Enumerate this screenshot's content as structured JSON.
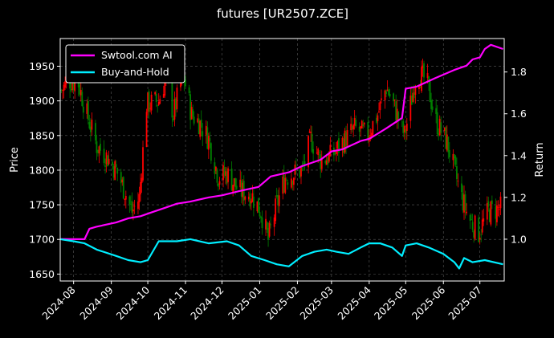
{
  "chart_data": {
    "type": "line",
    "title": "futures [UR2507.ZCE]",
    "ylabel_left": "Price",
    "ylabel_right": "Return",
    "ylim_left": [
      1640,
      1990
    ],
    "ylim_right": [
      0.8,
      1.96
    ],
    "yticks_left": [
      1650,
      1700,
      1750,
      1800,
      1850,
      1900,
      1950
    ],
    "yticks_right": [
      1.0,
      1.2,
      1.4,
      1.6,
      1.8
    ],
    "xlim": [
      "2024-07-21",
      "2025-07-21"
    ],
    "xticks": [
      "2024-08",
      "2024-09",
      "2024-10",
      "2024-11",
      "2024-12",
      "2025-01",
      "2025-02",
      "2025-03",
      "2025-04",
      "2025-05",
      "2025-06",
      "2025-07"
    ],
    "grid": true,
    "legend_position": "top-left",
    "colors": {
      "up": "#ff0000",
      "down": "#008000",
      "ai": "#ff00ff",
      "bh": "#00eeff"
    },
    "candlestick_anchors": {
      "dates": [
        "2024-07-22",
        "2024-07-28",
        "2024-08-05",
        "2024-08-12",
        "2024-08-20",
        "2024-08-28",
        "2024-09-05",
        "2024-09-12",
        "2024-09-18",
        "2024-09-24",
        "2024-09-30",
        "2024-10-10",
        "2024-10-16",
        "2024-10-22",
        "2024-10-30",
        "2024-11-06",
        "2024-11-12",
        "2024-11-20",
        "2024-11-28",
        "2024-12-05",
        "2024-12-15",
        "2024-12-25",
        "2025-01-02",
        "2025-01-08",
        "2025-01-15",
        "2025-01-22",
        "2025-02-05",
        "2025-02-12",
        "2025-02-20",
        "2025-03-01",
        "2025-03-10",
        "2025-03-20",
        "2025-03-30",
        "2025-04-08",
        "2025-04-15",
        "2025-04-22",
        "2025-04-30",
        "2025-05-10",
        "2025-05-18",
        "2025-05-26",
        "2025-06-04",
        "2025-06-10",
        "2025-06-16",
        "2025-06-22",
        "2025-06-30",
        "2025-07-08",
        "2025-07-18"
      ],
      "close": [
        1915,
        1930,
        1925,
        1880,
        1835,
        1820,
        1800,
        1770,
        1740,
        1760,
        1895,
        1900,
        1935,
        1880,
        1940,
        1880,
        1870,
        1845,
        1790,
        1795,
        1770,
        1765,
        1740,
        1700,
        1750,
        1790,
        1800,
        1845,
        1815,
        1820,
        1840,
        1860,
        1850,
        1880,
        1920,
        1890,
        1850,
        1940,
        1930,
        1870,
        1840,
        1800,
        1760,
        1730,
        1710,
        1740,
        1745
      ]
    },
    "series": [
      {
        "name": "Swtool.com AI",
        "axis": "right",
        "dates": [
          "2024-07-21",
          "2024-08-01",
          "2024-08-10",
          "2024-08-14",
          "2024-08-20",
          "2024-09-05",
          "2024-09-15",
          "2024-09-25",
          "2024-10-05",
          "2024-10-15",
          "2024-10-25",
          "2024-11-05",
          "2024-11-20",
          "2024-12-01",
          "2024-12-15",
          "2024-12-31",
          "2025-01-10",
          "2025-01-25",
          "2025-02-05",
          "2025-02-20",
          "2025-03-01",
          "2025-03-10",
          "2025-03-25",
          "2025-04-01",
          "2025-04-15",
          "2025-04-28",
          "2025-05-01",
          "2025-05-10",
          "2025-05-25",
          "2025-06-10",
          "2025-06-20",
          "2025-06-25",
          "2025-07-01",
          "2025-07-05",
          "2025-07-10",
          "2025-07-20"
        ],
        "values": [
          1.0,
          1.0,
          1.0,
          1.05,
          1.06,
          1.08,
          1.1,
          1.11,
          1.13,
          1.15,
          1.17,
          1.18,
          1.2,
          1.21,
          1.23,
          1.25,
          1.3,
          1.32,
          1.35,
          1.38,
          1.42,
          1.43,
          1.47,
          1.48,
          1.53,
          1.58,
          1.72,
          1.73,
          1.77,
          1.81,
          1.83,
          1.86,
          1.87,
          1.91,
          1.93,
          1.91
        ]
      },
      {
        "name": "Buy-and-Hold",
        "axis": "right",
        "dates": [
          "2024-07-21",
          "2024-08-01",
          "2024-08-10",
          "2024-08-20",
          "2024-09-05",
          "2024-09-15",
          "2024-09-25",
          "2024-10-01",
          "2024-10-10",
          "2024-10-25",
          "2024-11-05",
          "2024-11-20",
          "2024-12-05",
          "2024-12-15",
          "2024-12-25",
          "2025-01-05",
          "2025-01-15",
          "2025-01-25",
          "2025-02-05",
          "2025-02-15",
          "2025-02-25",
          "2025-03-05",
          "2025-03-15",
          "2025-03-25",
          "2025-04-01",
          "2025-04-10",
          "2025-04-20",
          "2025-04-28",
          "2025-05-01",
          "2025-05-10",
          "2025-05-20",
          "2025-06-01",
          "2025-06-10",
          "2025-06-14",
          "2025-06-18",
          "2025-06-25",
          "2025-07-05",
          "2025-07-20"
        ],
        "values": [
          1.0,
          0.99,
          0.98,
          0.95,
          0.92,
          0.9,
          0.89,
          0.9,
          0.99,
          0.99,
          1.0,
          0.98,
          0.99,
          0.97,
          0.92,
          0.9,
          0.88,
          0.87,
          0.92,
          0.94,
          0.95,
          0.94,
          0.93,
          0.96,
          0.98,
          0.98,
          0.96,
          0.92,
          0.97,
          0.98,
          0.96,
          0.93,
          0.89,
          0.86,
          0.91,
          0.89,
          0.9,
          0.88
        ]
      }
    ]
  }
}
